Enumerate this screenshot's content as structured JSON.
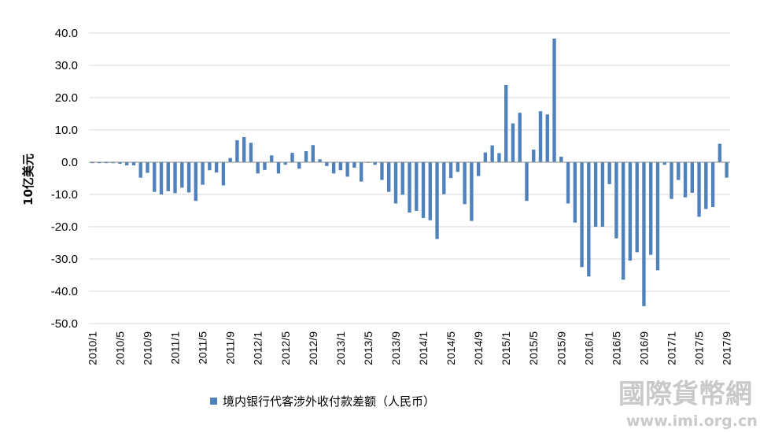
{
  "chart_data": {
    "type": "bar",
    "title": "",
    "xlabel": "",
    "ylabel": "10亿美元",
    "ylim": [
      -50,
      40
    ],
    "yticks": [
      "40.0",
      "30.0",
      "20.0",
      "10.0",
      "0.0",
      "-10.0",
      "-20.0",
      "-30.0",
      "-40.0",
      "-50.0"
    ],
    "grid": true,
    "legend_position": "bottom",
    "bar_color": "#4f81bd",
    "categories": [
      "2010/1",
      "2010/2",
      "2010/3",
      "2010/4",
      "2010/5",
      "2010/6",
      "2010/7",
      "2010/8",
      "2010/9",
      "2010/10",
      "2010/11",
      "2010/12",
      "2011/1",
      "2011/2",
      "2011/3",
      "2011/4",
      "2011/5",
      "2011/6",
      "2011/7",
      "2011/8",
      "2011/9",
      "2011/10",
      "2011/11",
      "2011/12",
      "2012/1",
      "2012/2",
      "2012/3",
      "2012/4",
      "2012/5",
      "2012/6",
      "2012/7",
      "2012/8",
      "2012/9",
      "2012/10",
      "2012/11",
      "2012/12",
      "2013/1",
      "2013/2",
      "2013/3",
      "2013/4",
      "2013/5",
      "2013/6",
      "2013/7",
      "2013/8",
      "2013/9",
      "2013/10",
      "2013/11",
      "2013/12",
      "2014/1",
      "2014/2",
      "2014/3",
      "2014/4",
      "2014/5",
      "2014/6",
      "2014/7",
      "2014/8",
      "2014/9",
      "2014/10",
      "2014/11",
      "2014/12",
      "2015/1",
      "2015/2",
      "2015/3",
      "2015/4",
      "2015/5",
      "2015/6",
      "2015/7",
      "2015/8",
      "2015/9",
      "2015/10",
      "2015/11",
      "2015/12",
      "2016/1",
      "2016/2",
      "2016/3",
      "2016/4",
      "2016/5",
      "2016/6",
      "2016/7",
      "2016/8",
      "2016/9",
      "2016/10",
      "2016/11",
      "2016/12",
      "2017/1",
      "2017/2",
      "2017/3",
      "2017/4",
      "2017/5",
      "2017/6",
      "2017/7",
      "2017/8",
      "2017/9"
    ],
    "tick_labels": [
      "2010/1",
      "2010/5",
      "2010/9",
      "2011/1",
      "2011/5",
      "2011/9",
      "2012/1",
      "2012/5",
      "2012/9",
      "2013/1",
      "2013/5",
      "2013/9",
      "2014/1",
      "2014/5",
      "2014/9",
      "2015/1",
      "2015/5",
      "2015/9",
      "2016/1",
      "2016/5",
      "2016/9",
      "2017/1",
      "2017/5",
      "2017/9"
    ],
    "series": [
      {
        "name": "境内银行代客涉外收付款差额（人民币）",
        "values": [
          -0.3,
          -0.3,
          -0.3,
          -0.3,
          -0.5,
          -1.0,
          -1.0,
          -4.8,
          -3.3,
          -9.2,
          -10.0,
          -9.0,
          -9.6,
          -7.9,
          -9.4,
          -12.0,
          -7.0,
          -2.5,
          -3.2,
          -7.2,
          1.3,
          6.8,
          7.8,
          6.0,
          -3.5,
          -2.4,
          2.1,
          -3.5,
          -0.8,
          2.9,
          -2.0,
          3.4,
          5.3,
          0.9,
          -1.2,
          -3.5,
          -2.5,
          -4.5,
          -1.7,
          -6.0,
          -0.2,
          -0.8,
          -5.5,
          -9.2,
          -12.8,
          -10.1,
          -15.6,
          -15.1,
          -17.3,
          -18.0,
          -23.8,
          -9.9,
          -4.9,
          -3.0,
          -13.0,
          -18.2,
          -4.3,
          3.0,
          5.2,
          2.8,
          23.9,
          12.0,
          15.3,
          -12.0,
          3.9,
          15.8,
          14.8,
          38.3,
          1.7,
          -12.8,
          -18.7,
          -32.5,
          -35.4,
          -20.0,
          -20.0,
          -6.8,
          -23.6,
          -36.4,
          -30.5,
          -27.9,
          -44.6,
          -28.7,
          -33.5,
          -0.8,
          -11.4,
          -5.5,
          -10.9,
          -9.5,
          -16.9,
          -14.5,
          -13.9,
          5.7,
          -4.8
        ]
      }
    ]
  },
  "watermark": {
    "logo_text": "國際貨幣網",
    "url_text": "www.imi.org.cn"
  }
}
